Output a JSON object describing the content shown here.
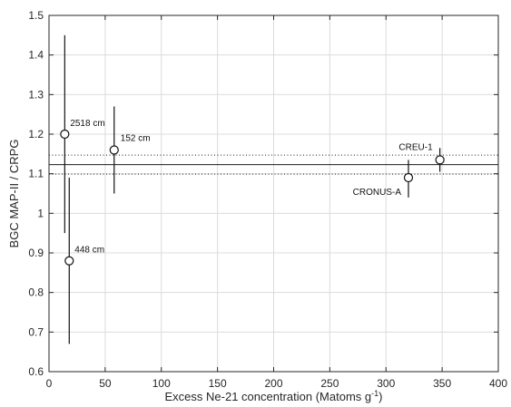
{
  "chart_data": {
    "type": "scatter",
    "title": "",
    "xlabel": "Excess Ne-21 concentration (Matoms g",
    "xlabel_sup": "-1",
    "xlabel_close": ")",
    "ylabel": "BGC MAP-II / CRPG",
    "xlim": [
      0,
      400
    ],
    "ylim": [
      0.6,
      1.5
    ],
    "xticks": [
      0,
      50,
      100,
      150,
      200,
      250,
      300,
      350,
      400
    ],
    "yticks": [
      0.6,
      0.7,
      0.8,
      0.9,
      1.0,
      1.1,
      1.2,
      1.3,
      1.4,
      1.5
    ],
    "xtick_labels": [
      "0",
      "50",
      "100",
      "150",
      "200",
      "250",
      "300",
      "350",
      "400"
    ],
    "ytick_labels": [
      "0.6",
      "0.7",
      "0.8",
      "0.9",
      "1",
      "1.1",
      "1.2",
      "1.3",
      "1.4",
      "1.5"
    ],
    "grid": true,
    "points": [
      {
        "label": "2518 cm",
        "x": 14,
        "y": 1.2,
        "err_low": 0.95,
        "err_high": 1.45
      },
      {
        "label": "448 cm",
        "x": 18,
        "y": 0.88,
        "err_low": 0.67,
        "err_high": 1.09
      },
      {
        "label": "152 cm",
        "x": 58,
        "y": 1.16,
        "err_low": 1.05,
        "err_high": 1.27
      },
      {
        "label": "CRONUS-A",
        "x": 320,
        "y": 1.09,
        "err_low": 1.04,
        "err_high": 1.135
      },
      {
        "label": "CREU-1",
        "x": 348,
        "y": 1.135,
        "err_low": 1.105,
        "err_high": 1.165
      }
    ],
    "reference_lines": [
      {
        "style": "solid",
        "y": 1.123
      },
      {
        "style": "dotted",
        "y": 1.147
      },
      {
        "style": "dotted",
        "y": 1.099
      }
    ]
  }
}
